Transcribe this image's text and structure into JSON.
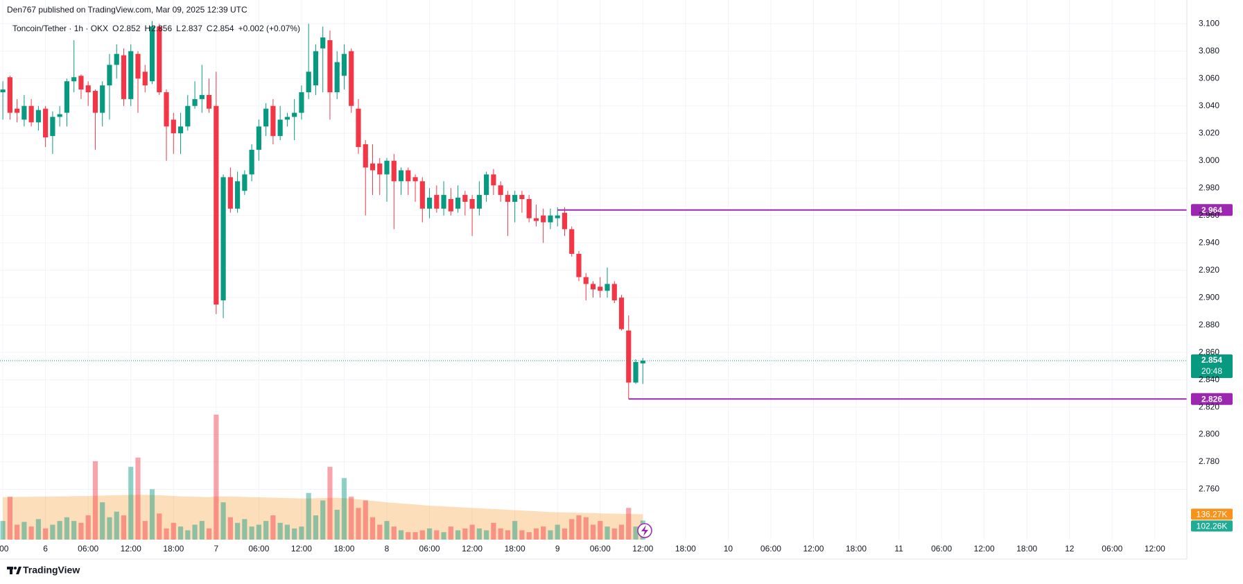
{
  "chart_data": {
    "type": "candlestick",
    "title": "Den767 published on TradingView.com, Mar 09, 2025 12:39 UTC",
    "symbol": "Toncoin/Tether · 1h · OKX",
    "legend_items": [
      {
        "key": "O",
        "value": 2.852
      },
      {
        "key": "H",
        "value": 2.856
      },
      {
        "key": "L",
        "value": 2.837
      },
      {
        "key": "C",
        "value": 2.854
      }
    ],
    "change": "+0.002 (+0.07%)",
    "up_color": "#089981",
    "down_color": "#f23645",
    "open": [
      3.05,
      3.061,
      3.038,
      3.03,
      3.04,
      3.028,
      3.038,
      3.018,
      3.032,
      3.035,
      3.058,
      3.062,
      3.055,
      3.051,
      3.035,
      3.055,
      3.07,
      3.077,
      3.045,
      3.078,
      3.065,
      3.058,
      3.098,
      3.05,
      3.03,
      3.02,
      3.025,
      3.04,
      3.045,
      3.048,
      3.04,
      2.898,
      2.988,
      2.965,
      2.978,
      2.99,
      3.008,
      3.025,
      3.04,
      3.018,
      3.03,
      3.032,
      3.035,
      3.05,
      3.055,
      3.082,
      3.088,
      3.05,
      3.062,
      3.08,
      3.038,
      3.012,
      2.998,
      2.998,
      2.99,
      3.0,
      2.985,
      2.993,
      2.988,
      2.985,
      2.965,
      2.975,
      2.965,
      2.972,
      2.965,
      2.975,
      2.972,
      2.965,
      2.975,
      2.99,
      2.982,
      2.975,
      2.97,
      2.975,
      2.972,
      2.958,
      2.96,
      2.955,
      2.958,
      2.962,
      2.95,
      2.932,
      2.915,
      2.91,
      2.908,
      2.905,
      2.91,
      2.9,
      2.876,
      2.838,
      2.852
    ],
    "high": [
      3.058,
      3.062,
      3.045,
      3.048,
      3.045,
      3.04,
      3.04,
      3.036,
      3.04,
      3.06,
      3.088,
      3.063,
      3.058,
      3.052,
      3.058,
      3.078,
      3.085,
      3.082,
      3.085,
      3.08,
      3.07,
      3.102,
      3.1,
      3.052,
      3.035,
      3.035,
      3.048,
      3.058,
      3.07,
      3.06,
      3.065,
      2.99,
      2.995,
      2.992,
      2.993,
      3.012,
      3.03,
      3.042,
      3.045,
      3.04,
      3.035,
      3.045,
      3.055,
      3.1,
      3.085,
      3.098,
      3.095,
      3.08,
      3.085,
      3.082,
      3.045,
      3.015,
      3.012,
      3.002,
      3.002,
      3.005,
      2.995,
      2.995,
      2.99,
      2.988,
      2.98,
      2.982,
      2.985,
      2.98,
      2.982,
      2.978,
      2.975,
      2.985,
      2.992,
      2.994,
      2.985,
      2.978,
      2.978,
      2.978,
      2.975,
      2.968,
      2.965,
      2.965,
      2.966,
      2.966,
      2.952,
      2.934,
      2.918,
      2.912,
      2.915,
      2.922,
      2.912,
      2.902,
      2.887,
      2.855,
      2.856
    ],
    "low": [
      3.03,
      3.03,
      3.028,
      3.025,
      3.025,
      3.022,
      3.01,
      3.005,
      3.025,
      3.025,
      3.05,
      3.045,
      3.04,
      3.008,
      3.025,
      3.03,
      3.06,
      3.04,
      3.04,
      3.035,
      3.05,
      3.056,
      3.048,
      3.0,
      3.005,
      3.005,
      3.022,
      3.038,
      3.035,
      3.035,
      2.888,
      2.885,
      2.962,
      2.962,
      2.975,
      2.985,
      3.0,
      3.018,
      3.012,
      3.015,
      3.025,
      3.015,
      3.03,
      3.045,
      3.048,
      3.05,
      3.03,
      3.045,
      3.052,
      3.035,
      3.005,
      2.96,
      2.975,
      2.975,
      2.97,
      2.95,
      2.975,
      2.975,
      2.97,
      2.955,
      2.958,
      2.962,
      2.96,
      2.96,
      2.962,
      2.96,
      2.945,
      2.96,
      2.97,
      2.975,
      2.97,
      2.945,
      2.955,
      2.962,
      2.955,
      2.952,
      2.94,
      2.95,
      2.952,
      2.945,
      2.93,
      2.912,
      2.898,
      2.9,
      2.9,
      2.9,
      2.896,
      2.876,
      2.826,
      2.837,
      2.837
    ],
    "close": [
      3.052,
      3.035,
      3.035,
      3.04,
      3.028,
      3.037,
      3.017,
      3.032,
      3.034,
      3.058,
      3.061,
      3.052,
      3.05,
      3.035,
      3.055,
      3.07,
      3.078,
      3.045,
      3.08,
      3.06,
      3.055,
      3.098,
      3.05,
      3.025,
      3.02,
      3.025,
      3.04,
      3.045,
      3.048,
      3.038,
      2.895,
      2.988,
      2.965,
      2.985,
      2.99,
      3.008,
      3.025,
      3.038,
      3.018,
      3.03,
      3.032,
      3.035,
      3.05,
      3.065,
      3.08,
      3.09,
      3.05,
      3.072,
      3.078,
      3.04,
      3.01,
      2.995,
      2.993,
      2.99,
      3.0,
      2.985,
      2.993,
      2.985,
      2.985,
      2.965,
      2.973,
      2.965,
      2.975,
      2.963,
      2.973,
      2.97,
      2.965,
      2.975,
      2.99,
      2.982,
      2.975,
      2.97,
      2.975,
      2.972,
      2.958,
      2.956,
      2.955,
      2.96,
      2.96,
      2.95,
      2.932,
      2.915,
      2.91,
      2.906,
      2.905,
      2.91,
      2.898,
      2.877,
      2.838,
      2.853,
      2.854
    ],
    "volume": {
      "values": [
        100000,
        230000,
        80000,
        95000,
        70000,
        110000,
        60000,
        80000,
        100000,
        120000,
        100000,
        90000,
        130000,
        420000,
        200000,
        120000,
        150000,
        130000,
        390000,
        440000,
        100000,
        270000,
        140000,
        60000,
        90000,
        70000,
        50000,
        80000,
        100000,
        60000,
        670000,
        200000,
        120000,
        90000,
        110000,
        70000,
        80000,
        100000,
        130000,
        90000,
        80000,
        60000,
        70000,
        250000,
        130000,
        210000,
        390000,
        160000,
        330000,
        230000,
        170000,
        210000,
        120000,
        80000,
        100000,
        70000,
        50000,
        40000,
        40000,
        50000,
        60000,
        50000,
        40000,
        70000,
        50000,
        60000,
        80000,
        60000,
        50000,
        90000,
        60000,
        50000,
        100000,
        50000,
        40000,
        60000,
        70000,
        50000,
        80000,
        60000,
        110000,
        130000,
        120000,
        80000,
        100000,
        70000,
        60000,
        80000,
        170000,
        70000,
        102260
      ],
      "last_label": "102.26K",
      "label_color": "#22ab94"
    },
    "volume_ma": {
      "values": [
        228000,
        228000,
        229000,
        229000,
        230000,
        230000,
        231000,
        231000,
        232000,
        232000,
        233000,
        233000,
        234000,
        235000,
        236000,
        237000,
        238000,
        239000,
        240000,
        240000,
        240000,
        239000,
        238000,
        236000,
        234000,
        232000,
        231000,
        230000,
        229000,
        228000,
        232000,
        232000,
        231000,
        230000,
        229000,
        228000,
        227000,
        226000,
        225000,
        224000,
        223000,
        222000,
        221000,
        221000,
        222000,
        223000,
        224000,
        224000,
        222000,
        220000,
        216000,
        212000,
        208000,
        204000,
        200000,
        197000,
        194000,
        191000,
        188000,
        185000,
        182000,
        180000,
        178000,
        176000,
        174000,
        172000,
        170000,
        168000,
        166000,
        164000,
        162000,
        160000,
        158000,
        156000,
        154000,
        152000,
        150000,
        148000,
        147000,
        146000,
        145000,
        144000,
        143000,
        142000,
        141000,
        140000,
        139000,
        138000,
        138000,
        137000,
        136270
      ],
      "last_label": "136.27K",
      "color": "#f7931a"
    },
    "volume_lim": [
      0,
      2800000
    ],
    "levels": [
      {
        "value": 2.964,
        "label": "2.964",
        "start": 78,
        "color": "#9c27b0"
      },
      {
        "value": 2.826,
        "label": "2.826",
        "start": 88,
        "color": "#9c27b0"
      }
    ],
    "last_price_label": "2.854",
    "countdown": "20:48",
    "xlim": [
      -0.4,
      166.5
    ],
    "xticks": [
      {
        "value": 0,
        "label": ":00"
      },
      {
        "value": 6,
        "label": "6"
      },
      {
        "value": 12,
        "label": "06:00"
      },
      {
        "value": 18,
        "label": "12:00"
      },
      {
        "value": 24,
        "label": "18:00"
      },
      {
        "value": 30,
        "label": "7"
      },
      {
        "value": 36,
        "label": "06:00"
      },
      {
        "value": 42,
        "label": "12:00"
      },
      {
        "value": 48,
        "label": "18:00"
      },
      {
        "value": 54,
        "label": "8"
      },
      {
        "value": 60,
        "label": "06:00"
      },
      {
        "value": 66,
        "label": "12:00"
      },
      {
        "value": 72,
        "label": "18:00"
      },
      {
        "value": 78,
        "label": "9"
      },
      {
        "value": 84,
        "label": "06:00"
      },
      {
        "value": 90,
        "label": "12:00"
      },
      {
        "value": 96,
        "label": "18:00"
      },
      {
        "value": 102,
        "label": "10"
      },
      {
        "value": 108,
        "label": "06:00"
      },
      {
        "value": 114,
        "label": "12:00"
      },
      {
        "value": 120,
        "label": "18:00"
      },
      {
        "value": 126,
        "label": "11"
      },
      {
        "value": 132,
        "label": "06:00"
      },
      {
        "value": 138,
        "label": "12:00"
      },
      {
        "value": 144,
        "label": "18:00"
      },
      {
        "value": 150,
        "label": "12"
      },
      {
        "value": 156,
        "label": "06:00"
      },
      {
        "value": 162,
        "label": "12:00"
      }
    ],
    "ylim": [
      2.7233,
      3.1047
    ],
    "yticks": [
      {
        "value": 2.76,
        "label": "2.760"
      },
      {
        "value": 2.78,
        "label": "2.780"
      },
      {
        "value": 2.8,
        "label": "2.800"
      },
      {
        "value": 2.82,
        "label": "2.820"
      },
      {
        "value": 2.84,
        "label": "2.840"
      },
      {
        "value": 2.86,
        "label": "2.860"
      },
      {
        "value": 2.88,
        "label": "2.880"
      },
      {
        "value": 2.9,
        "label": "2.900"
      },
      {
        "value": 2.92,
        "label": "2.920"
      },
      {
        "value": 2.94,
        "label": "2.940"
      },
      {
        "value": 2.96,
        "label": "2.960"
      },
      {
        "value": 2.98,
        "label": "2.980"
      },
      {
        "value": 3.0,
        "label": "3.000"
      },
      {
        "value": 3.02,
        "label": "3.020"
      },
      {
        "value": 3.04,
        "label": "3.040"
      },
      {
        "value": 3.06,
        "label": "3.060"
      },
      {
        "value": 3.08,
        "label": "3.080"
      },
      {
        "value": 3.1,
        "label": "3.100"
      }
    ],
    "grid": true,
    "footer": "TradingView"
  }
}
